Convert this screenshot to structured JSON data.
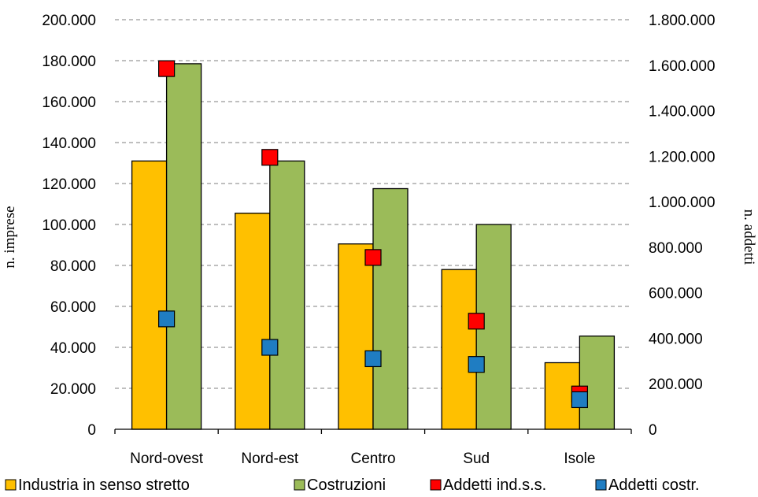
{
  "chart_data": {
    "type": "bar",
    "categories": [
      "Nord-ovest",
      "Nord-est",
      "Centro",
      "Sud",
      "Isole"
    ],
    "y_left": {
      "label": "n. imprese",
      "range": [
        0,
        200000
      ],
      "ticks": [
        "0",
        "20.000",
        "40.000",
        "60.000",
        "80.000",
        "100.000",
        "120.000",
        "140.000",
        "160.000",
        "180.000",
        "200.000"
      ]
    },
    "y_right": {
      "label": "n. addetti",
      "range": [
        0,
        1800000
      ],
      "ticks": [
        "0",
        "200.000",
        "400.000",
        "600.000",
        "800.000",
        "1.000.000",
        "1.200.000",
        "1.400.000",
        "1.600.000",
        "1.800.000"
      ]
    },
    "grid": "horizontal-dashed",
    "legend_position": "bottom",
    "series": [
      {
        "name": "Industria in senso stretto",
        "type": "bar",
        "axis": "left",
        "color": "#FFC000",
        "values": [
          131000,
          105500,
          90500,
          78000,
          32500
        ]
      },
      {
        "name": "Costruzioni",
        "type": "bar",
        "axis": "left",
        "color": "#9BBB59",
        "values": [
          178500,
          131000,
          117500,
          100000,
          45500
        ]
      },
      {
        "name": "Addetti ind.s.s.",
        "type": "marker",
        "axis": "right",
        "color": "#FF0000",
        "values": [
          1585000,
          1195000,
          755000,
          475000,
          155000
        ]
      },
      {
        "name": "Addetti costr.",
        "type": "marker",
        "axis": "right",
        "color": "#1F7DC2",
        "values": [
          485000,
          360000,
          310000,
          285000,
          130000
        ]
      }
    ]
  }
}
